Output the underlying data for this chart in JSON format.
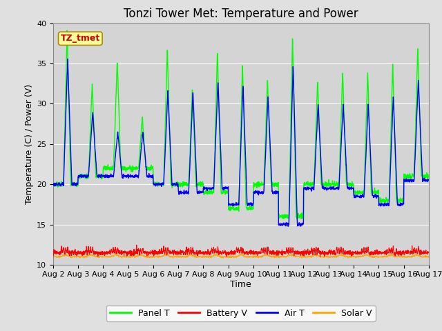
{
  "title": "Tonzi Tower Met: Temperature and Power",
  "xlabel": "Time",
  "ylabel": "Temperature (C) / Power (V)",
  "ylim": [
    10,
    40
  ],
  "yticks": [
    10,
    15,
    20,
    25,
    30,
    35,
    40
  ],
  "annotation_text": "TZ_tmet",
  "legend_entries": [
    "Panel T",
    "Battery V",
    "Air T",
    "Solar V"
  ],
  "legend_colors": [
    "#00ff00",
    "#ff0000",
    "#0000ff",
    "#ffa500"
  ],
  "fig_bg_color": "#e0e0e0",
  "plot_bg_color": "#d4d4d4",
  "title_fontsize": 12,
  "label_fontsize": 9,
  "tick_fontsize": 8,
  "xtick_labels": [
    "Aug 2",
    "Aug 3",
    "Aug 4",
    "Aug 5",
    "Aug 6",
    "Aug 7",
    "Aug 8",
    "Aug 9",
    "Aug 10",
    "Aug 11",
    "Aug 12",
    "Aug 13",
    "Aug 14",
    "Aug 15",
    "Aug 16",
    "Aug 17"
  ],
  "xtick_positions": [
    0,
    1,
    2,
    3,
    4,
    5,
    6,
    7,
    8,
    9,
    10,
    11,
    12,
    13,
    14,
    15
  ]
}
